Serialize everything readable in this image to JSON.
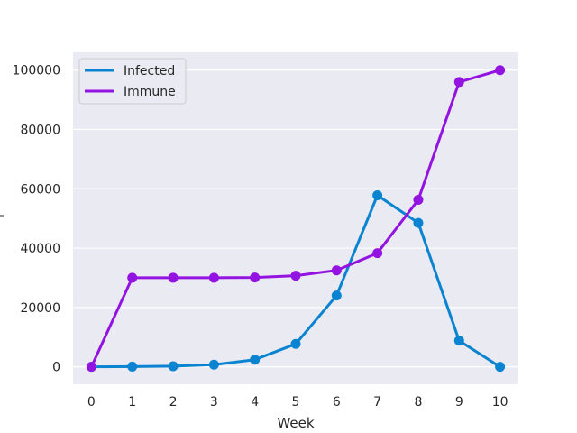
{
  "chart_data": {
    "type": "line",
    "title": "",
    "xlabel": "Week",
    "ylabel": "",
    "x": [
      0,
      1,
      2,
      3,
      4,
      5,
      6,
      7,
      8,
      9,
      10
    ],
    "x_ticks": [
      "0",
      "1",
      "2",
      "3",
      "4",
      "5",
      "6",
      "7",
      "8",
      "9",
      "10"
    ],
    "y_ticks": [
      0,
      20000,
      40000,
      60000,
      80000,
      100000
    ],
    "y_tick_labels": [
      "0",
      "20000",
      "40000",
      "60000",
      "80000",
      "100000"
    ],
    "xlim": [
      -0.45,
      10.45
    ],
    "ylim": [
      -5900,
      106000
    ],
    "grid": true,
    "legend_position": "top-left",
    "series": [
      {
        "name": "Infected",
        "color": "#0a84d0",
        "values": [
          0,
          50,
          200,
          700,
          2400,
          7700,
          24000,
          57800,
          48500,
          8800,
          0
        ]
      },
      {
        "name": "Immune",
        "color": "#9314e0",
        "values": [
          0,
          30000,
          30000,
          30000,
          30100,
          30700,
          32500,
          38300,
          56300,
          96000,
          100000
        ]
      }
    ]
  }
}
